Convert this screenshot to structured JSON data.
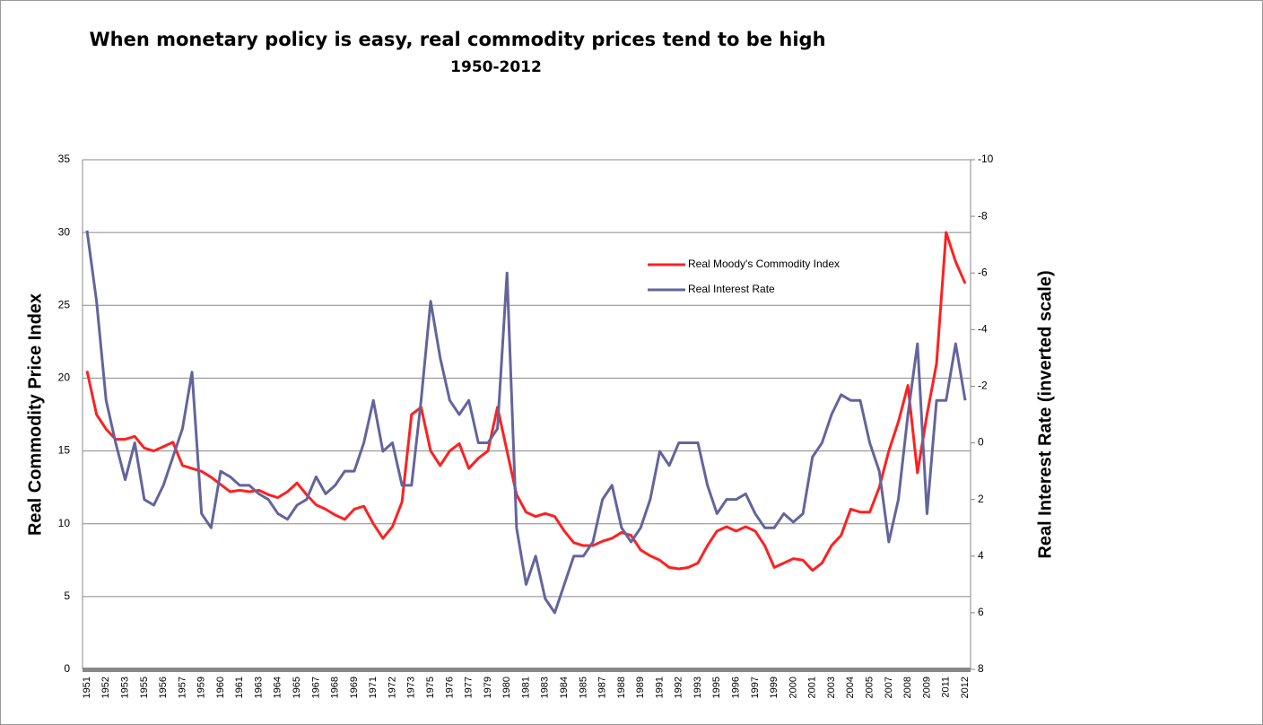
{
  "chart_data": {
    "type": "line",
    "title": "When monetary policy is easy, real commodity prices tend to be high",
    "subtitle": "1950-2012",
    "y_label": "Real Commodity Price Index",
    "y2_label": "Real Interest Rate (inverted scale)",
    "categories": [
      "1951",
      null,
      "1952",
      null,
      "1953",
      null,
      "1955",
      null,
      "1956",
      null,
      "1957",
      null,
      "1959",
      null,
      "1960",
      null,
      "1961",
      null,
      "1963",
      null,
      "1964",
      null,
      "1965",
      null,
      "1967",
      null,
      "1968",
      null,
      "1969",
      null,
      "1971",
      null,
      "1972",
      null,
      "1973",
      null,
      "1975",
      null,
      "1976",
      null,
      "1977",
      null,
      "1979",
      null,
      "1980",
      null,
      "1981",
      null,
      "1983",
      null,
      "1984",
      null,
      "1985",
      null,
      "1987",
      null,
      "1988",
      null,
      "1989",
      null,
      "1991",
      null,
      "1992",
      null,
      "1993",
      null,
      "1995",
      null,
      "1996",
      null,
      "1997",
      null,
      "1999",
      null,
      "2000",
      null,
      "2001",
      null,
      "2003",
      null,
      "2004",
      null,
      "2005",
      null,
      "2007",
      null,
      "2008",
      null,
      "2009",
      null,
      "2011",
      null,
      "2012"
    ],
    "series": [
      {
        "name": "Real Moody's Commodity Index",
        "color": "#ff2020",
        "axis": "y",
        "values": [
          20.5,
          17.5,
          16.5,
          15.8,
          15.8,
          16,
          15.2,
          15,
          15.3,
          15.6,
          14,
          13.8,
          13.6,
          13.2,
          12.7,
          12.2,
          12.3,
          12.2,
          12.3,
          12,
          11.8,
          12.2,
          12.8,
          12,
          11.3,
          11,
          10.6,
          10.3,
          11,
          11.2,
          10,
          9,
          9.8,
          11.5,
          17.5,
          18,
          15,
          14,
          15,
          15.5,
          13.8,
          14.5,
          15,
          18,
          15,
          12,
          10.8,
          10.5,
          10.7,
          10.5,
          9.5,
          8.7,
          8.5,
          8.5,
          8.8,
          9,
          9.4,
          9.2,
          8.2,
          7.8,
          7.5,
          7,
          6.9,
          7,
          7.3,
          8.5,
          9.5,
          9.8,
          9.5,
          9.8,
          9.5,
          8.5,
          7,
          7.3,
          7.6,
          7.5,
          6.8,
          7.3,
          8.5,
          9.2,
          11,
          10.8,
          10.8,
          12.5,
          15,
          17,
          19.5,
          13.5,
          17.5,
          21,
          30,
          28,
          26.5
        ]
      },
      {
        "name": "Real Interest Rate",
        "color": "#64649c",
        "axis": "y2",
        "values": [
          -7.5,
          -5,
          -1.5,
          0,
          1.3,
          0,
          2,
          2.2,
          1.5,
          0.5,
          -0.5,
          -2.5,
          2.5,
          3,
          1,
          1.2,
          1.5,
          1.5,
          1.8,
          2,
          2.5,
          2.7,
          2.2,
          2,
          1.2,
          1.8,
          1.5,
          1,
          1,
          0,
          -1.5,
          0.3,
          0,
          1.5,
          1.5,
          -1.5,
          -5,
          -3,
          -1.5,
          -1,
          -1.5,
          0,
          0,
          -0.5,
          -6,
          3,
          5,
          4,
          5.5,
          6,
          5,
          4,
          4,
          3.5,
          2,
          1.5,
          3,
          3.5,
          3,
          2,
          0.3,
          0.8,
          0,
          0,
          0,
          1.5,
          2.5,
          2,
          2,
          1.8,
          2.5,
          3,
          3,
          2.5,
          2.8,
          2.5,
          0.5,
          0,
          -1,
          -1.7,
          -1.5,
          -1.5,
          0,
          1,
          3.5,
          2,
          -1,
          -3.5,
          2.5,
          -1.5,
          -1.5,
          -3.5,
          -1.5
        ]
      }
    ],
    "ylim": [
      0,
      35
    ],
    "yticks": [
      0,
      5,
      10,
      15,
      20,
      25,
      30,
      35
    ],
    "y2lim": [
      8,
      -10
    ],
    "y2ticks": [
      8,
      6,
      4,
      2,
      0,
      -2,
      -4,
      -6,
      -8,
      -10
    ],
    "grid": true
  }
}
